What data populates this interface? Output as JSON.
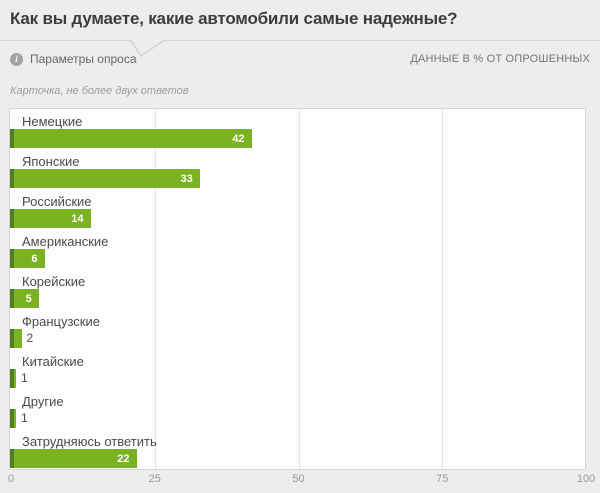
{
  "header": {
    "title": "Как вы думаете, какие автомобили самые надежные?",
    "params_label": "Параметры опроса",
    "info_icon_glyph": "i",
    "units_note": "ДАННЫЕ В % ОТ ОПРОШЕННЫХ",
    "method_note": "Карточка, не более двух ответов"
  },
  "colors": {
    "page_bg": "#ededed",
    "border": "#d5d5d5",
    "bar": "#7ab223",
    "bar_edge": "#547e1b"
  },
  "chart_data": {
    "type": "bar",
    "orientation": "horizontal",
    "title": "Как вы думаете, какие автомобили самые надежные?",
    "categories": [
      "Немецкие",
      "Японские",
      "Российские",
      "Американские",
      "Корейские",
      "Французские",
      "Китайские",
      "Другие",
      "Затрудняюсь ответить"
    ],
    "values": [
      42,
      33,
      14,
      6,
      5,
      2,
      1,
      1,
      22
    ],
    "units": "% от опрошенных",
    "xlim": [
      0,
      100
    ],
    "x_ticks": [
      0,
      25,
      50,
      75,
      100
    ],
    "grid": true,
    "legend": false,
    "value_labels": "inside bar end in white; outside in gray for bars shorter than ~4%"
  }
}
